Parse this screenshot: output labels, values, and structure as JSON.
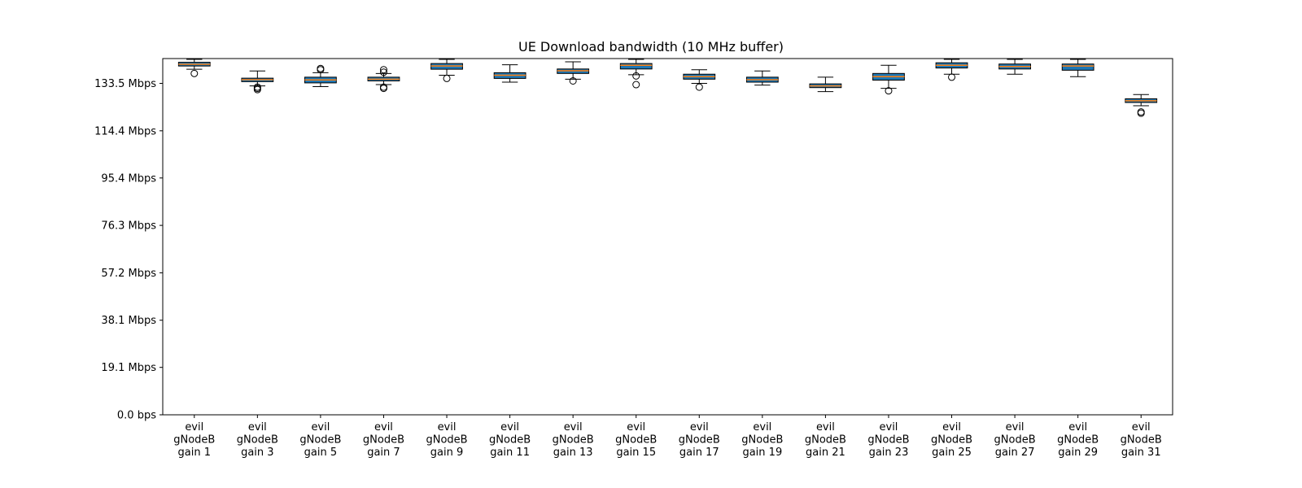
{
  "chart_data": {
    "type": "box",
    "title": "UE Download bandwidth (10 MHz buffer)",
    "xlabel": "",
    "ylabel": "",
    "ylim": [
      0,
      143.5
    ],
    "yticks": [
      {
        "value": 0.0,
        "label": "0.0 bps"
      },
      {
        "value": 19.1,
        "label": "19.1 Mbps"
      },
      {
        "value": 38.1,
        "label": "38.1 Mbps"
      },
      {
        "value": 57.2,
        "label": "57.2 Mbps"
      },
      {
        "value": 76.3,
        "label": "76.3 Mbps"
      },
      {
        "value": 95.4,
        "label": "95.4 Mbps"
      },
      {
        "value": 114.4,
        "label": "114.4 Mbps"
      },
      {
        "value": 133.5,
        "label": "133.5 Mbps"
      }
    ],
    "categories": [
      "evil gNodeB gain 1",
      "evil gNodeB gain 3",
      "evil gNodeB gain 5",
      "evil gNodeB gain 7",
      "evil gNodeB gain 9",
      "evil gNodeB gain 11",
      "evil gNodeB gain 13",
      "evil gNodeB gain 15",
      "evil gNodeB gain 17",
      "evil gNodeB gain 19",
      "evil gNodeB gain 21",
      "evil gNodeB gain 23",
      "evil gNodeB gain 25",
      "evil gNodeB gain 27",
      "evil gNodeB gain 29",
      "evil gNodeB gain 31"
    ],
    "category_lines": [
      [
        "evil",
        "gNodeB",
        "gain 1"
      ],
      [
        "evil",
        "gNodeB",
        "gain 3"
      ],
      [
        "evil",
        "gNodeB",
        "gain 5"
      ],
      [
        "evil",
        "gNodeB",
        "gain 7"
      ],
      [
        "evil",
        "gNodeB",
        "gain 9"
      ],
      [
        "evil",
        "gNodeB",
        "gain 11"
      ],
      [
        "evil",
        "gNodeB",
        "gain 13"
      ],
      [
        "evil",
        "gNodeB",
        "gain 15"
      ],
      [
        "evil",
        "gNodeB",
        "gain 17"
      ],
      [
        "evil",
        "gNodeB",
        "gain 19"
      ],
      [
        "evil",
        "gNodeB",
        "gain 21"
      ],
      [
        "evil",
        "gNodeB",
        "gain 23"
      ],
      [
        "evil",
        "gNodeB",
        "gain 25"
      ],
      [
        "evil",
        "gNodeB",
        "gain 27"
      ],
      [
        "evil",
        "gNodeB",
        "gain 29"
      ],
      [
        "evil",
        "gNodeB",
        "gain 31"
      ]
    ],
    "boxes": [
      {
        "whislo": 139.2,
        "q1": 140.5,
        "median": 141.2,
        "q3": 142.0,
        "whishi": 143.5,
        "fliers": [
          137.5
        ]
      },
      {
        "whislo": 132.5,
        "q1": 134.2,
        "median": 135.0,
        "q3": 135.6,
        "whishi": 138.5,
        "fliers": [
          132.0,
          131.5,
          131.0
        ]
      },
      {
        "whislo": 132.2,
        "q1": 133.7,
        "median": 134.9,
        "q3": 136.0,
        "whishi": 137.8,
        "fliers": [
          139.0,
          139.5
        ]
      },
      {
        "whislo": 133.0,
        "q1": 134.5,
        "median": 135.2,
        "q3": 136.0,
        "whishi": 137.5,
        "fliers": [
          132.0,
          131.5,
          138.0,
          139.0
        ]
      },
      {
        "whislo": 136.8,
        "q1": 139.2,
        "median": 140.5,
        "q3": 141.5,
        "whishi": 143.2,
        "fliers": [
          135.5
        ]
      },
      {
        "whislo": 134.0,
        "q1": 135.5,
        "median": 136.8,
        "q3": 137.8,
        "whishi": 141.0,
        "fliers": []
      },
      {
        "whislo": 135.2,
        "q1": 137.5,
        "median": 138.6,
        "q3": 139.3,
        "whishi": 142.2,
        "fliers": [
          134.5
        ]
      },
      {
        "whislo": 137.0,
        "q1": 139.3,
        "median": 140.8,
        "q3": 141.5,
        "whishi": 143.5,
        "fliers": [
          133.0,
          136.5
        ]
      },
      {
        "whislo": 133.5,
        "q1": 135.2,
        "median": 136.2,
        "q3": 137.2,
        "whishi": 139.0,
        "fliers": [
          132.0
        ]
      },
      {
        "whislo": 132.8,
        "q1": 134.0,
        "median": 135.0,
        "q3": 136.0,
        "whishi": 138.5,
        "fliers": []
      },
      {
        "whislo": 130.2,
        "q1": 131.8,
        "median": 132.5,
        "q3": 133.3,
        "whishi": 136.0,
        "fliers": []
      },
      {
        "whislo": 131.5,
        "q1": 134.8,
        "median": 136.2,
        "q3": 137.5,
        "whishi": 140.8,
        "fliers": [
          130.5
        ]
      },
      {
        "whislo": 137.2,
        "q1": 139.7,
        "median": 140.8,
        "q3": 141.8,
        "whishi": 143.5,
        "fliers": [
          136.0
        ]
      },
      {
        "whislo": 137.2,
        "q1": 139.3,
        "median": 140.3,
        "q3": 141.3,
        "whishi": 143.3,
        "fliers": []
      },
      {
        "whislo": 136.2,
        "q1": 138.8,
        "median": 140.5,
        "q3": 141.3,
        "whishi": 143.5,
        "fliers": []
      },
      {
        "whislo": 124.5,
        "q1": 125.8,
        "median": 126.5,
        "q3": 127.3,
        "whishi": 129.0,
        "fliers": [
          121.5,
          122.0
        ]
      }
    ],
    "colors": {
      "median": "#ff7f0e",
      "box_face": "#1f77b4",
      "line": "#000000",
      "axes": "#000000"
    },
    "grid": false,
    "legend": "none"
  }
}
